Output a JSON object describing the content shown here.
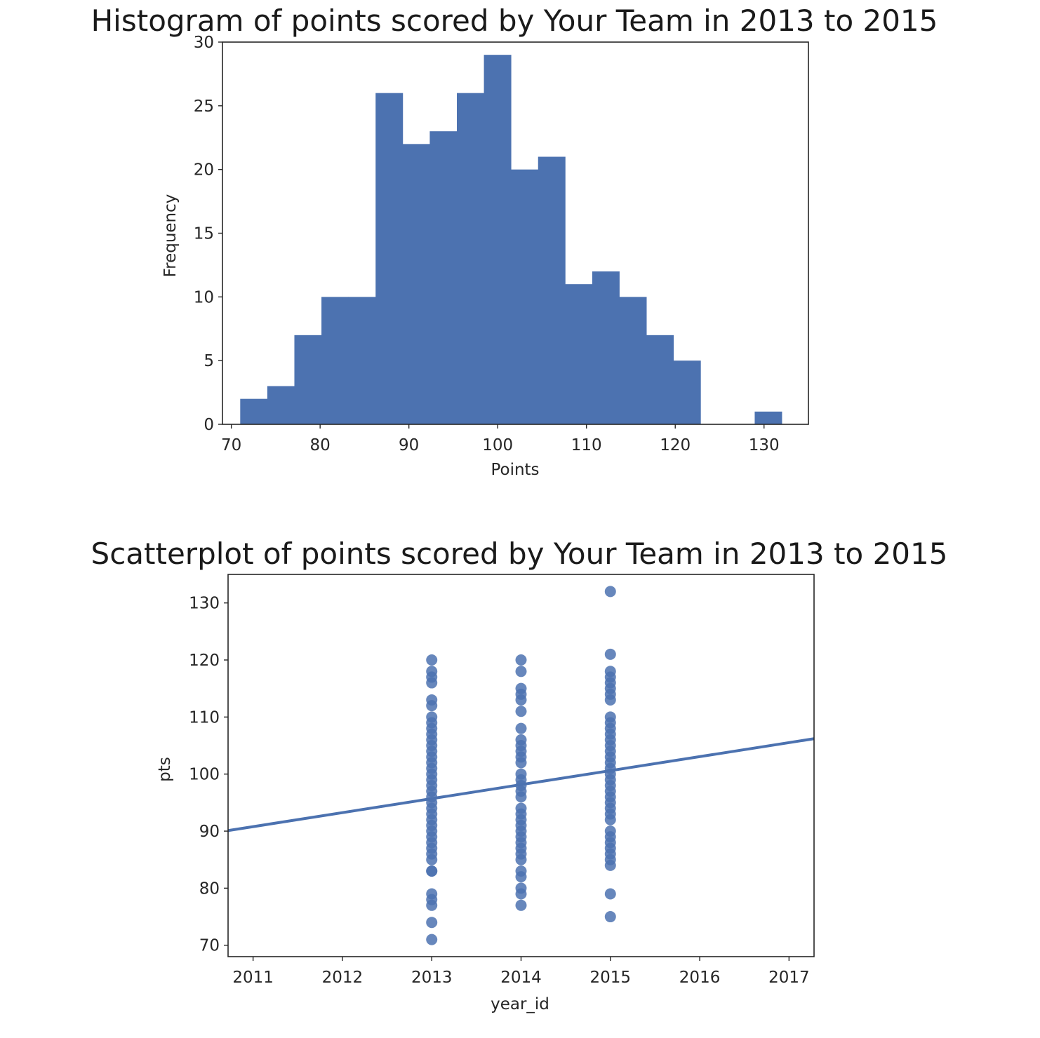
{
  "chart_data": [
    {
      "type": "bar",
      "title": "Histogram of points scored by Your Team in 2013 to 2015",
      "xlabel": "Points",
      "ylabel": "Frequency",
      "xlim": [
        69,
        135
      ],
      "ylim": [
        0,
        30
      ],
      "xticks": [
        70,
        80,
        90,
        100,
        110,
        120,
        130
      ],
      "yticks": [
        0,
        5,
        10,
        15,
        20,
        25,
        30
      ],
      "grid": false,
      "color": "#4c72b0",
      "bins": [
        {
          "start": 71.0,
          "end": 74.05,
          "count": 2
        },
        {
          "start": 74.05,
          "end": 77.1,
          "count": 3
        },
        {
          "start": 77.1,
          "end": 80.15,
          "count": 7
        },
        {
          "start": 80.15,
          "end": 83.2,
          "count": 10
        },
        {
          "start": 83.2,
          "end": 86.25,
          "count": 10
        },
        {
          "start": 86.25,
          "end": 89.3,
          "count": 26
        },
        {
          "start": 89.3,
          "end": 92.35,
          "count": 22
        },
        {
          "start": 92.35,
          "end": 95.4,
          "count": 23
        },
        {
          "start": 95.4,
          "end": 98.45,
          "count": 26
        },
        {
          "start": 98.45,
          "end": 101.5,
          "count": 29
        },
        {
          "start": 101.5,
          "end": 104.55,
          "count": 20
        },
        {
          "start": 104.55,
          "end": 107.6,
          "count": 21
        },
        {
          "start": 107.6,
          "end": 110.65,
          "count": 11
        },
        {
          "start": 110.65,
          "end": 113.7,
          "count": 12
        },
        {
          "start": 113.7,
          "end": 116.75,
          "count": 10
        },
        {
          "start": 116.75,
          "end": 119.8,
          "count": 7
        },
        {
          "start": 119.8,
          "end": 122.85,
          "count": 5
        },
        {
          "start": 122.85,
          "end": 125.9,
          "count": 0
        },
        {
          "start": 125.9,
          "end": 128.95,
          "count": 0
        },
        {
          "start": 128.95,
          "end": 132.0,
          "count": 1
        }
      ]
    },
    {
      "type": "scatter",
      "title": "Scatterplot of points scored by Your Team in 2013 to 2015",
      "xlabel": "year_id",
      "ylabel": "pts",
      "xlim": [
        2010.72,
        2017.28
      ],
      "ylim": [
        68,
        135
      ],
      "xticks": [
        2011,
        2012,
        2013,
        2014,
        2015,
        2016,
        2017
      ],
      "yticks": [
        70,
        80,
        90,
        100,
        110,
        120,
        130
      ],
      "grid": false,
      "color": "#4c72b0",
      "series": [
        {
          "x": 2013,
          "y": [
            71,
            74,
            77,
            78,
            79,
            83,
            83,
            85,
            86,
            87,
            88,
            89,
            90,
            91,
            92,
            93,
            94,
            95,
            96,
            97,
            98,
            99,
            100,
            101,
            102,
            103,
            104,
            105,
            106,
            107,
            108,
            109,
            110,
            112,
            113,
            116,
            117,
            118,
            120
          ]
        },
        {
          "x": 2014,
          "y": [
            77,
            79,
            80,
            82,
            83,
            85,
            86,
            87,
            88,
            89,
            90,
            91,
            92,
            93,
            94,
            96,
            97,
            98,
            99,
            100,
            102,
            103,
            104,
            105,
            106,
            108,
            111,
            113,
            114,
            115,
            118,
            120
          ]
        },
        {
          "x": 2015,
          "y": [
            75,
            79,
            84,
            85,
            86,
            87,
            88,
            89,
            90,
            92,
            93,
            94,
            95,
            96,
            97,
            98,
            99,
            100,
            101,
            102,
            103,
            104,
            105,
            106,
            107,
            108,
            109,
            110,
            113,
            114,
            115,
            116,
            117,
            118,
            121,
            132
          ]
        }
      ],
      "regression_line": {
        "x": [
          2010.72,
          2017.28
        ],
        "y": [
          90.1,
          106.2
        ]
      }
    }
  ]
}
